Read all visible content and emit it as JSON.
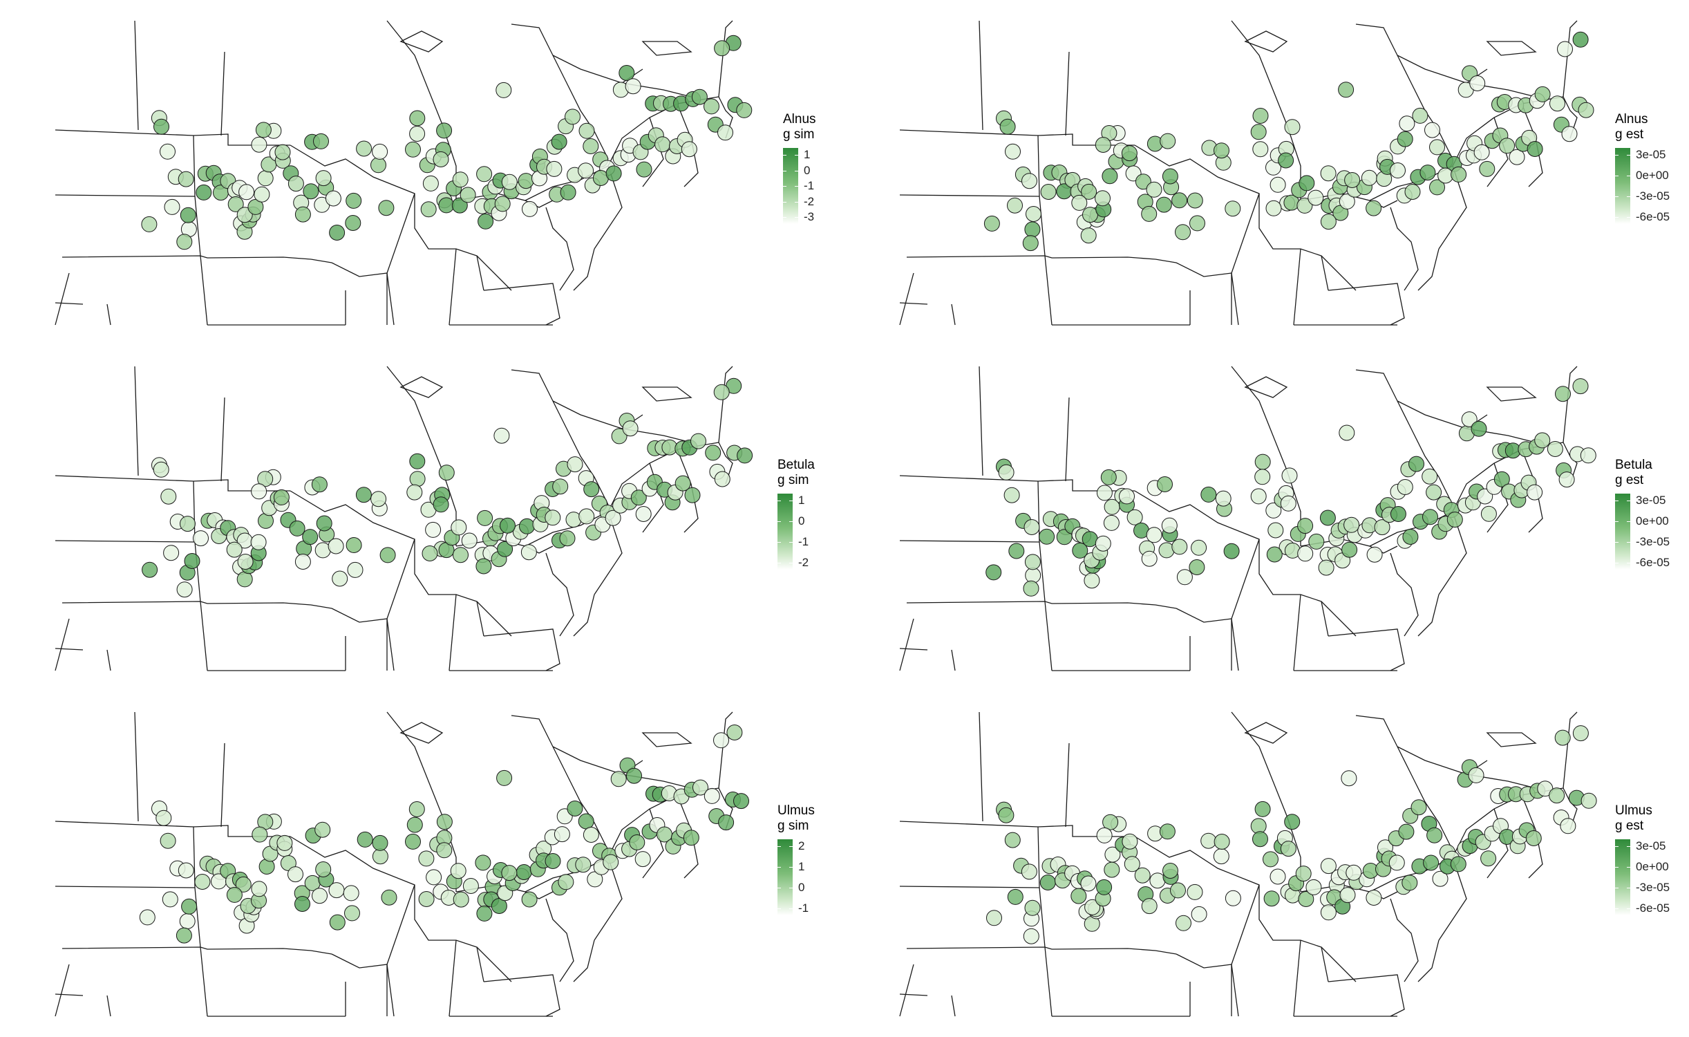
{
  "colors": {
    "high": "#2f8a3a",
    "mid": "#7dbd78",
    "low": "#d8ecd3",
    "lowest": "#ffffff",
    "border": "#1a1a1a"
  },
  "panels": [
    {
      "id": "alnus-sim",
      "title_line1": "Alnus",
      "title_line2": "g sim",
      "legend_labels": [
        "1",
        "0",
        "-1",
        "-2",
        "-3"
      ],
      "seed": 11
    },
    {
      "id": "alnus-est",
      "title_line1": "Alnus",
      "title_line2": "g est",
      "legend_labels": [
        "3e-05",
        "0e+00",
        "-3e-05",
        "-6e-05"
      ],
      "seed": 23
    },
    {
      "id": "betula-sim",
      "title_line1": "Betula",
      "title_line2": "g sim",
      "legend_labels": [
        "1",
        "0",
        "-1",
        "-2"
      ],
      "seed": 37
    },
    {
      "id": "betula-est",
      "title_line1": "Betula",
      "title_line2": "g est",
      "legend_labels": [
        "3e-05",
        "0e+00",
        "-3e-05",
        "-6e-05"
      ],
      "seed": 41
    },
    {
      "id": "ulmus-sim",
      "title_line1": "Ulmus",
      "title_line2": "g sim",
      "legend_labels": [
        "2",
        "1",
        "0",
        "-1"
      ],
      "seed": 53
    },
    {
      "id": "ulmus-est",
      "title_line1": "Ulmus",
      "title_line2": "g est",
      "legend_labels": [
        "3e-05",
        "0e+00",
        "-3e-05",
        "-6e-05"
      ],
      "seed": 67
    }
  ]
}
